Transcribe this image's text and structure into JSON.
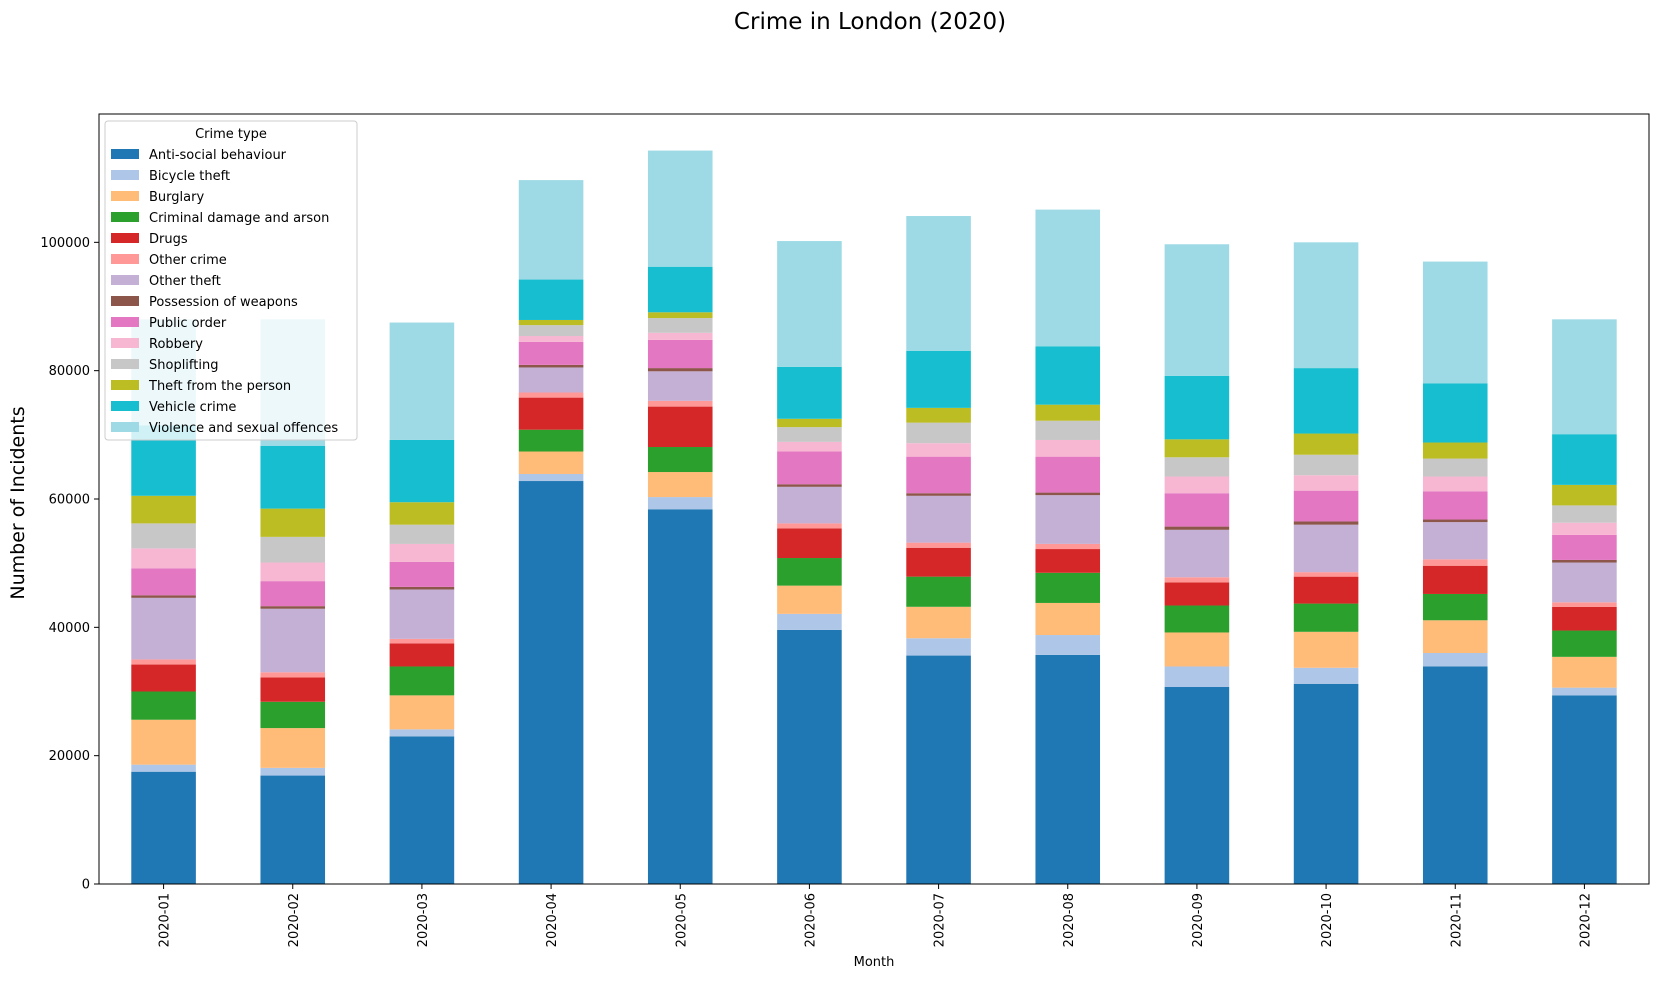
{
  "chart_data": {
    "type": "bar",
    "stacked": true,
    "title": "Crime in London (2020)",
    "xlabel": "Month",
    "ylabel": "Number of Incidents",
    "ylim": [
      0,
      120000
    ],
    "yticks": [
      0,
      20000,
      40000,
      60000,
      80000,
      100000
    ],
    "grid": false,
    "legend": {
      "title": "Crime type",
      "placement": "top-left"
    },
    "categories": [
      "2020-01",
      "2020-02",
      "2020-03",
      "2020-04",
      "2020-05",
      "2020-06",
      "2020-07",
      "2020-08",
      "2020-09",
      "2020-10",
      "2020-11",
      "2020-12"
    ],
    "series": [
      {
        "name": "Anti-social behaviour",
        "color": "#1f77b4",
        "values": [
          17500,
          16900,
          23000,
          62800,
          58400,
          39600,
          35600,
          35700,
          30700,
          31200,
          33900,
          29400
        ]
      },
      {
        "name": "Bicycle theft",
        "color": "#aec7e8",
        "values": [
          1100,
          1200,
          1100,
          1100,
          1900,
          2500,
          2700,
          3100,
          3200,
          2500,
          2100,
          1200
        ]
      },
      {
        "name": "Burglary",
        "color": "#ffbb78",
        "values": [
          7000,
          6200,
          5300,
          3500,
          3900,
          4400,
          4900,
          5000,
          5300,
          5600,
          5100,
          4800
        ]
      },
      {
        "name": "Criminal damage and arson",
        "color": "#2ca02c",
        "values": [
          4400,
          4100,
          4500,
          3400,
          3900,
          4300,
          4700,
          4700,
          4200,
          4400,
          4100,
          4100
        ]
      },
      {
        "name": "Drugs",
        "color": "#d62728",
        "values": [
          4200,
          3800,
          3600,
          5000,
          6300,
          4600,
          4500,
          3700,
          3600,
          4200,
          4400,
          3700
        ]
      },
      {
        "name": "Other crime",
        "color": "#ff9896",
        "values": [
          800,
          800,
          700,
          800,
          900,
          800,
          800,
          800,
          800,
          700,
          1000,
          700
        ]
      },
      {
        "name": "Other theft",
        "color": "#c5b0d5",
        "values": [
          9600,
          9900,
          7700,
          3900,
          4600,
          5700,
          7300,
          7600,
          7400,
          7400,
          5800,
          6200
        ]
      },
      {
        "name": "Possession of weapons",
        "color": "#8c564b",
        "values": [
          400,
          400,
          400,
          400,
          500,
          400,
          400,
          400,
          500,
          500,
          400,
          400
        ]
      },
      {
        "name": "Public order",
        "color": "#e377c2",
        "values": [
          4200,
          3900,
          3900,
          3600,
          4400,
          5100,
          5700,
          5600,
          5200,
          4800,
          4400,
          3900
        ]
      },
      {
        "name": "Robbery",
        "color": "#f7b6d2",
        "values": [
          3100,
          2900,
          2800,
          900,
          1100,
          1500,
          2100,
          2600,
          2600,
          2400,
          2300,
          1900
        ]
      },
      {
        "name": "Shoplifting",
        "color": "#c7c7c7",
        "values": [
          3900,
          4000,
          3000,
          1700,
          2300,
          2300,
          3200,
          3000,
          3000,
          3200,
          2800,
          2700
        ]
      },
      {
        "name": "Theft from the person",
        "color": "#bcbd22",
        "values": [
          4300,
          4400,
          3500,
          800,
          900,
          1300,
          2300,
          2500,
          2800,
          3300,
          2500,
          3200
        ]
      },
      {
        "name": "Vehicle crime",
        "color": "#17becf",
        "values": [
          11000,
          9800,
          9700,
          6300,
          7100,
          8100,
          8900,
          9100,
          9900,
          10200,
          9200,
          7900
        ]
      },
      {
        "name": "Violence and sexual offences",
        "color": "#9edae5",
        "values": [
          16500,
          19700,
          18300,
          15500,
          18100,
          19600,
          21000,
          21300,
          20500,
          19600,
          19000,
          17900
        ]
      }
    ]
  }
}
